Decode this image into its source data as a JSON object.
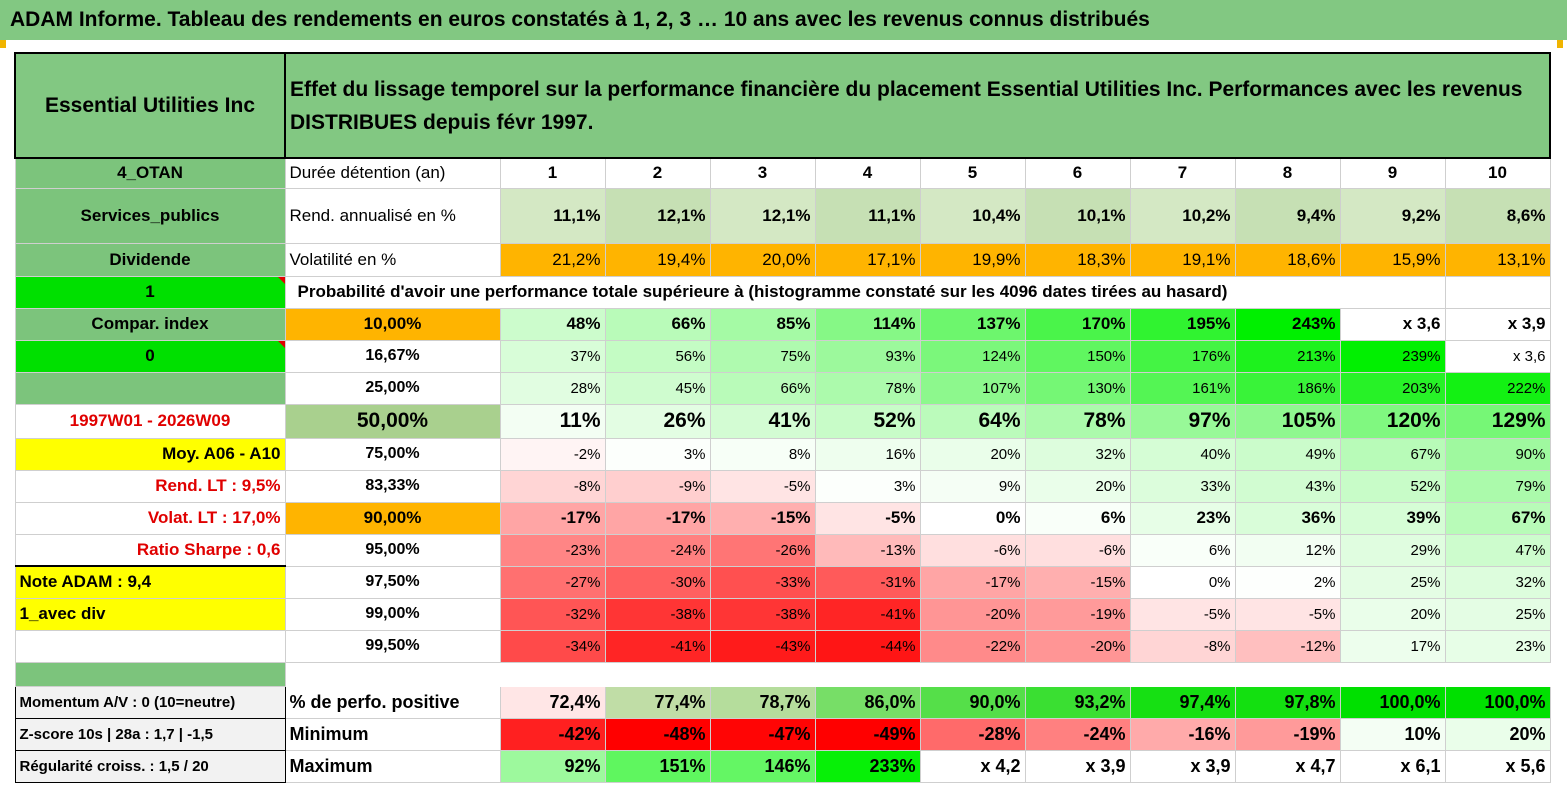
{
  "title": "ADAM Informe. Tableau des rendements en euros constatés à 1, 2, 3 … 10 ans avec les revenus connus distribués",
  "header": {
    "company": "Essential Utilities Inc",
    "description": "Effet du lissage temporel sur la performance financière du placement Essential Utilities Inc. Performances avec les revenus DISTRIBUES depuis févr 1997."
  },
  "years": [
    "1",
    "2",
    "3",
    "4",
    "5",
    "6",
    "7",
    "8",
    "9",
    "10"
  ],
  "left_labels": {
    "code": "4_OTAN",
    "sector": "Services_publics",
    "type": "Dividende",
    "flag_one": "1",
    "compar": "Compar. index",
    "flag_zero": "0",
    "period": "1997W01 - 2026W09",
    "moy": "Moy. A06 - A10",
    "rend_lt": "Rend. LT :   9,5%",
    "volat_lt": "Volat. LT :   17,0%",
    "sharpe": "Ratio Sharpe :     0,6",
    "note": "Note ADAM : 9,4",
    "avec_div": "1_avec div",
    "momentum": "Momentum A/V : 0 (10=neutre)",
    "zscore": "Z-score 10s | 28a : 1,7 | -1,5",
    "regularite": "Régularité croiss. : 1,5 / 20"
  },
  "row_labels": {
    "duree": "Durée détention (an)",
    "rend": "Rend. annualisé en %",
    "vol": "Volatilité en %",
    "proba": "Probabilité d'avoir une performance totale supérieure à (histogramme constaté sur les 4096 dates tirées au hasard)",
    "pct_pos": "% de perfo. positive",
    "minimum": "Minimum",
    "maximum": "Maximum"
  },
  "rend": [
    "11,1%",
    "12,1%",
    "12,1%",
    "11,1%",
    "10,4%",
    "10,1%",
    "10,2%",
    "9,4%",
    "9,2%",
    "8,6%"
  ],
  "vol": [
    "21,2%",
    "19,4%",
    "20,0%",
    "17,1%",
    "19,9%",
    "18,3%",
    "19,1%",
    "18,6%",
    "15,9%",
    "13,1%"
  ],
  "prob_rows": [
    {
      "p": "10,00%",
      "v": [
        "48%",
        "66%",
        "85%",
        "114%",
        "137%",
        "170%",
        "195%",
        "243%",
        "x 3,6",
        "x 3,9"
      ]
    },
    {
      "p": "16,67%",
      "v": [
        "37%",
        "56%",
        "75%",
        "93%",
        "124%",
        "150%",
        "176%",
        "213%",
        "239%",
        "x 3,6"
      ]
    },
    {
      "p": "25,00%",
      "v": [
        "28%",
        "45%",
        "66%",
        "78%",
        "107%",
        "130%",
        "161%",
        "186%",
        "203%",
        "222%"
      ]
    },
    {
      "p": "50,00%",
      "v": [
        "11%",
        "26%",
        "41%",
        "52%",
        "64%",
        "78%",
        "97%",
        "105%",
        "120%",
        "129%"
      ]
    },
    {
      "p": "75,00%",
      "v": [
        "-2%",
        "3%",
        "8%",
        "16%",
        "20%",
        "32%",
        "40%",
        "49%",
        "67%",
        "90%"
      ]
    },
    {
      "p": "83,33%",
      "v": [
        "-8%",
        "-9%",
        "-5%",
        "3%",
        "9%",
        "20%",
        "33%",
        "43%",
        "52%",
        "79%"
      ]
    },
    {
      "p": "90,00%",
      "v": [
        "-17%",
        "-17%",
        "-15%",
        "-5%",
        "0%",
        "6%",
        "23%",
        "36%",
        "39%",
        "67%"
      ]
    },
    {
      "p": "95,00%",
      "v": [
        "-23%",
        "-24%",
        "-26%",
        "-13%",
        "-6%",
        "-6%",
        "6%",
        "12%",
        "29%",
        "47%"
      ]
    },
    {
      "p": "97,50%",
      "v": [
        "-27%",
        "-30%",
        "-33%",
        "-31%",
        "-17%",
        "-15%",
        "0%",
        "2%",
        "25%",
        "32%"
      ]
    },
    {
      "p": "99,00%",
      "v": [
        "-32%",
        "-38%",
        "-38%",
        "-41%",
        "-20%",
        "-19%",
        "-5%",
        "-5%",
        "20%",
        "25%"
      ]
    },
    {
      "p": "99,50%",
      "v": [
        "-34%",
        "-41%",
        "-43%",
        "-44%",
        "-22%",
        "-20%",
        "-8%",
        "-12%",
        "17%",
        "23%"
      ]
    }
  ],
  "pct_pos": [
    "72,4%",
    "77,4%",
    "78,7%",
    "86,0%",
    "90,0%",
    "93,2%",
    "97,4%",
    "97,8%",
    "100,0%",
    "100,0%"
  ],
  "minimum": [
    "-42%",
    "-48%",
    "-47%",
    "-49%",
    "-28%",
    "-24%",
    "-16%",
    "-19%",
    "10%",
    "20%"
  ],
  "maximum": [
    "92%",
    "151%",
    "146%",
    "233%",
    "x 4,2",
    "x 3,9",
    "x 3,9",
    "x 4,7",
    "x 6,1",
    "x 5,6"
  ],
  "colors": {
    "header_green": "#82c882",
    "label_green": "#7cc47c",
    "bright_green": "#00e000",
    "orange": "#ffb400",
    "yellow": "#ffff00",
    "red": "#e00000"
  }
}
